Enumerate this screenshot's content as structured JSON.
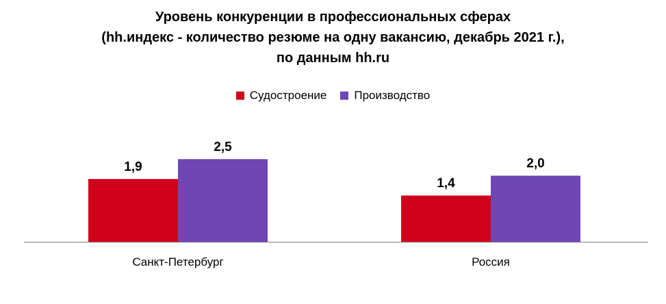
{
  "chart_data": {
    "type": "bar",
    "title_lines": [
      "Уровень конкуренции в профессиональных сферах",
      "(hh.индекс - количество резюме на одну вакансию, декабрь 2021 г.),",
      "по данным hh.ru"
    ],
    "categories": [
      "Санкт-Петербург",
      "Россия"
    ],
    "series": [
      {
        "name": "Судостроение",
        "values": [
          1.9,
          1.4
        ],
        "labels": [
          "1,9",
          "1,4"
        ],
        "color": "#D0021B"
      },
      {
        "name": "Производство",
        "values": [
          2.5,
          2.0
        ],
        "labels": [
          "2,5",
          "2,0"
        ],
        "color": "#6E47B5"
      }
    ],
    "ylim": [
      0,
      2.5
    ],
    "grid": false,
    "legend_position": "top-center"
  }
}
